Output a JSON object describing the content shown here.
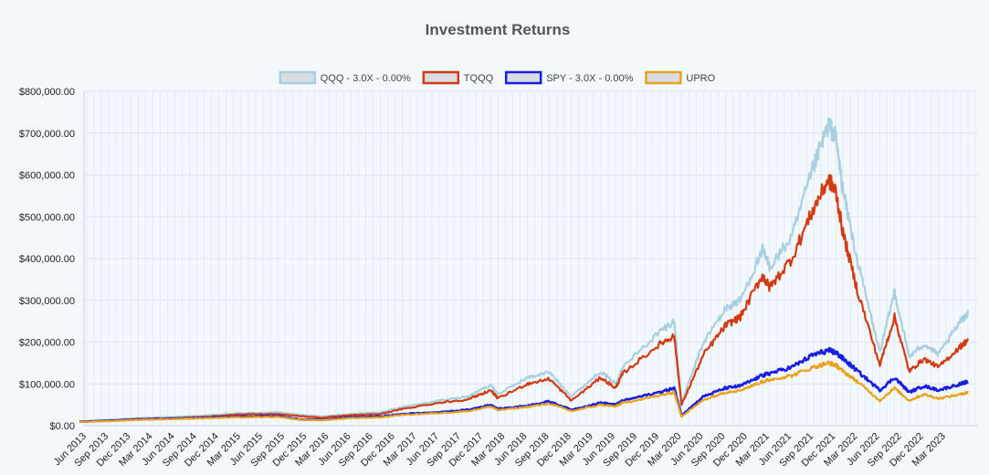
{
  "chart_data": {
    "type": "line",
    "title": "Investment Returns",
    "xlabel": "",
    "ylabel": "",
    "ylim": [
      0,
      800000
    ],
    "yticks": [
      {
        "value": 0,
        "label": "$0.00"
      },
      {
        "value": 100000,
        "label": "$100,000.00"
      },
      {
        "value": 200000,
        "label": "$200,000.00"
      },
      {
        "value": 300000,
        "label": "$300,000.00"
      },
      {
        "value": 400000,
        "label": "$400,000.00"
      },
      {
        "value": 500000,
        "label": "$500,000.00"
      },
      {
        "value": 600000,
        "label": "$600,000.00"
      },
      {
        "value": 700000,
        "label": "$700,000.00"
      },
      {
        "value": 800000,
        "label": "$800,000.00"
      }
    ],
    "xticks": [
      "Jun 2013",
      "Sep 2013",
      "Dec 2013",
      "Mar 2014",
      "Jun 2014",
      "Sep 2014",
      "Dec 2014",
      "Mar 2015",
      "Jun 2015",
      "Sep 2015",
      "Dec 2015",
      "Mar 2016",
      "Jun 2016",
      "Sep 2016",
      "Dec 2016",
      "Mar 2017",
      "Jun 2017",
      "Sep 2017",
      "Dec 2017",
      "Mar 2018",
      "Jun 2018",
      "Sep 2018",
      "Dec 2018",
      "Mar 2019",
      "Jun 2019",
      "Sep 2019",
      "Dec 2019",
      "Mar 2020",
      "Jun 2020",
      "Sep 2020",
      "Dec 2020",
      "Mar 2021",
      "Jun 2021",
      "Sep 2021",
      "Dec 2021",
      "Mar 2022",
      "Jun 2022",
      "Sep 2022",
      "Dec 2022",
      "Mar 2023"
    ],
    "grid": true,
    "legend_position": "top",
    "x": [
      "2013-05",
      "2013-09",
      "2014-01",
      "2014-06",
      "2014-10",
      "2015-03",
      "2015-08",
      "2015-11",
      "2016-02",
      "2016-06",
      "2016-10",
      "2017-01",
      "2017-06",
      "2017-10",
      "2018-01",
      "2018-02",
      "2018-06",
      "2018-09",
      "2018-12",
      "2019-04",
      "2019-06",
      "2019-07",
      "2019-12",
      "2020-02",
      "2020-03",
      "2020-06",
      "2020-09",
      "2020-11",
      "2021-02",
      "2021-03",
      "2021-06",
      "2021-09",
      "2021-11",
      "2021-12",
      "2022-01",
      "2022-03",
      "2022-06",
      "2022-08",
      "2022-10",
      "2022-12",
      "2023-02",
      "2023-05",
      "2023-06"
    ],
    "series": [
      {
        "name": "QQQ - 3.0X - 0.00%",
        "color": "#a9cfe0",
        "fill": "#d9dde3",
        "values": [
          10000,
          14000,
          18000,
          21000,
          24000,
          30000,
          32000,
          26000,
          22000,
          28000,
          32000,
          45000,
          60000,
          70000,
          98000,
          75000,
          115000,
          128000,
          70000,
          130000,
          100000,
          140000,
          225000,
          250000,
          55000,
          200000,
          280000,
          300000,
          420000,
          380000,
          450000,
          620000,
          720000,
          690000,
          560000,
          390000,
          175000,
          320000,
          165000,
          195000,
          170000,
          250000,
          270000
        ]
      },
      {
        "name": "TQQQ",
        "color": "#d23a12",
        "fill": "#d9dde3",
        "values": [
          9000,
          12000,
          16000,
          18000,
          21000,
          27000,
          28000,
          23000,
          19000,
          25000,
          28000,
          40000,
          55000,
          63000,
          85000,
          65000,
          100000,
          112000,
          60000,
          115000,
          90000,
          125000,
          195000,
          215000,
          50000,
          170000,
          240000,
          260000,
          360000,
          330000,
          400000,
          520000,
          590000,
          560000,
          460000,
          320000,
          145000,
          260000,
          130000,
          160000,
          140000,
          190000,
          205000
        ]
      },
      {
        "name": "SPY - 3.0X - 0.00%",
        "color": "#1a1ee0",
        "fill": "#d9dde3",
        "values": [
          9500,
          12000,
          15000,
          17000,
          19000,
          22000,
          23000,
          15000,
          14000,
          20000,
          22000,
          28000,
          32000,
          38000,
          50000,
          40000,
          48000,
          58000,
          38000,
          55000,
          50000,
          60000,
          80000,
          90000,
          25000,
          70000,
          90000,
          95000,
          120000,
          125000,
          140000,
          170000,
          180000,
          175000,
          160000,
          130000,
          85000,
          115000,
          80000,
          95000,
          85000,
          100000,
          105000
        ]
      },
      {
        "name": "UPRO",
        "color": "#e8a21e",
        "fill": "#d9dde3",
        "values": [
          9000,
          11000,
          14000,
          16000,
          18000,
          20000,
          21000,
          14000,
          13000,
          18000,
          20000,
          26000,
          30000,
          35000,
          46000,
          37000,
          45000,
          53000,
          35000,
          50000,
          46000,
          55000,
          72000,
          80000,
          22000,
          62000,
          80000,
          85000,
          105000,
          110000,
          120000,
          140000,
          150000,
          145000,
          130000,
          105000,
          60000,
          90000,
          60000,
          75000,
          65000,
          75000,
          80000
        ]
      }
    ]
  }
}
